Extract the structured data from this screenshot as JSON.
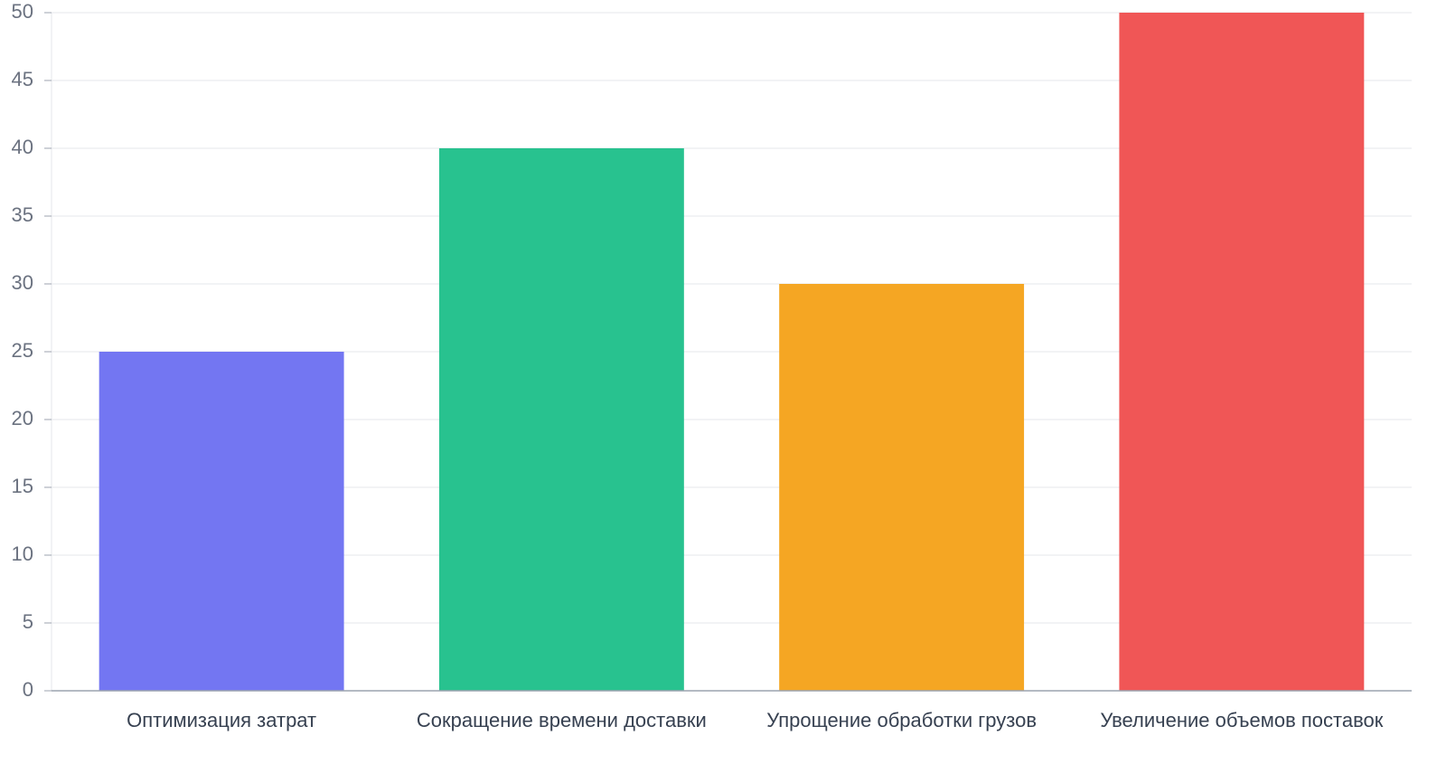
{
  "chart_data": {
    "type": "bar",
    "categories": [
      "Оптимизация затрат",
      "Сокращение времени доставки",
      "Упрощение обработки грузов",
      "Увеличение объемов поставок"
    ],
    "values": [
      25,
      40,
      30,
      50
    ],
    "colors": [
      "#7376f2",
      "#28c28f",
      "#f5a623",
      "#f05656"
    ],
    "ylim": [
      0,
      50
    ],
    "yticks": [
      0,
      5,
      10,
      15,
      20,
      25,
      30,
      35,
      40,
      45,
      50
    ],
    "grid": true
  }
}
